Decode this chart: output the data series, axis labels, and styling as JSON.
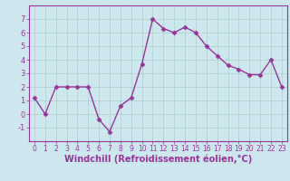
{
  "x": [
    0,
    1,
    2,
    3,
    4,
    5,
    6,
    7,
    8,
    9,
    10,
    11,
    12,
    13,
    14,
    15,
    16,
    17,
    18,
    19,
    20,
    21,
    22,
    23
  ],
  "y": [
    1.2,
    0.0,
    2.0,
    2.0,
    2.0,
    2.0,
    -0.4,
    -1.3,
    0.6,
    1.2,
    3.7,
    7.0,
    6.3,
    6.0,
    6.4,
    6.0,
    5.0,
    4.3,
    3.6,
    3.3,
    2.9,
    2.9,
    4.0,
    2.0
  ],
  "line_color": "#993399",
  "marker": "D",
  "marker_size": 2.5,
  "bg_color": "#cce8ee",
  "grid_color": "#aacccc",
  "xlabel": "Windchill (Refroidissement éolien,°C)",
  "xlim": [
    -0.5,
    23.5
  ],
  "ylim": [
    -2,
    8
  ],
  "yticks": [
    -1,
    0,
    1,
    2,
    3,
    4,
    5,
    6,
    7
  ],
  "xticks": [
    0,
    1,
    2,
    3,
    4,
    5,
    6,
    7,
    8,
    9,
    10,
    11,
    12,
    13,
    14,
    15,
    16,
    17,
    18,
    19,
    20,
    21,
    22,
    23
  ],
  "spine_color": "#993399",
  "tick_color": "#993399",
  "label_color": "#993399",
  "linewidth": 1.0,
  "xlabel_fontsize": 7.0,
  "tick_fontsize_x": 5.5,
  "tick_fontsize_y": 6.0
}
